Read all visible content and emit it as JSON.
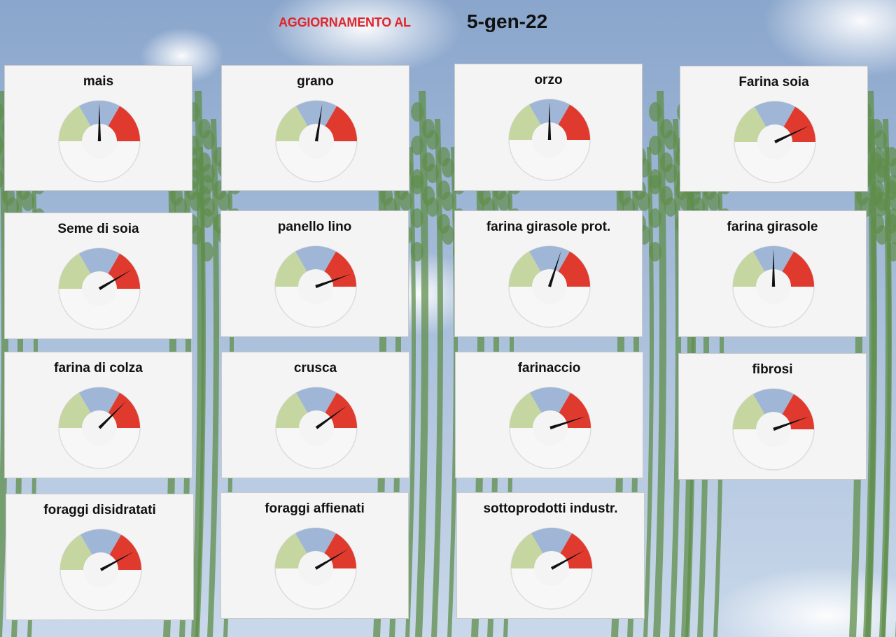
{
  "header": {
    "label": "AGGIORNAMENTO AL",
    "date": "5-gen-22"
  },
  "colors": {
    "header_label": "#e0242b",
    "zone_low": "#c5d6a0",
    "zone_mid": "#9fb6d6",
    "zone_high": "#e03a2e",
    "track": "#f7f7f7",
    "needle": "#111111",
    "sky_top": "#8aa6cc",
    "sky_bottom": "#c9d8ea",
    "wheat": "#5f8d4a"
  },
  "chart_data": {
    "type": "gauge",
    "zones": [
      "low",
      "mid",
      "high"
    ],
    "gauges": [
      {
        "title": "mais",
        "value": 0.5
      },
      {
        "title": "grano",
        "value": 0.55
      },
      {
        "title": "orzo",
        "value": 0.5
      },
      {
        "title": "Farina soia",
        "value": 0.86
      },
      {
        "title": "Seme di soia",
        "value": 0.83
      },
      {
        "title": "panello lino",
        "value": 0.89
      },
      {
        "title": "farina girasole prot.",
        "value": 0.6
      },
      {
        "title": "farina girasole",
        "value": 0.5
      },
      {
        "title": "farina di colza",
        "value": 0.75
      },
      {
        "title": "crusca",
        "value": 0.8
      },
      {
        "title": "farinaccio",
        "value": 0.9
      },
      {
        "title": "fibrosi",
        "value": 0.89
      },
      {
        "title": "foraggi disidratati",
        "value": 0.84
      },
      {
        "title": "foraggi affienati",
        "value": 0.83
      },
      {
        "title": "sottoprodotti industr.",
        "value": 0.84
      }
    ]
  }
}
